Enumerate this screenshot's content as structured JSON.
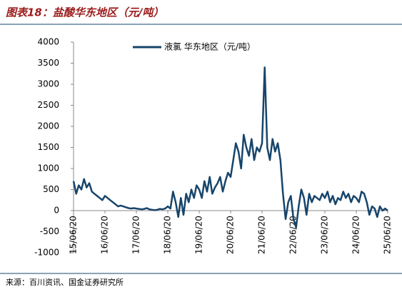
{
  "chart_data": {
    "type": "line",
    "title": "图表18：盐酸华东地区（元/吨）",
    "source": "来源：百川资讯、国金证券研究所",
    "categories": [
      "15/06/20",
      null,
      null,
      null,
      null,
      null,
      null,
      null,
      null,
      null,
      null,
      null,
      "16/06/20",
      null,
      null,
      null,
      null,
      null,
      null,
      null,
      null,
      null,
      null,
      null,
      "17/06/20",
      null,
      null,
      null,
      null,
      null,
      null,
      null,
      null,
      null,
      null,
      null,
      "18/06/20",
      null,
      null,
      null,
      null,
      null,
      null,
      null,
      null,
      null,
      null,
      null,
      "19/06/20",
      null,
      null,
      null,
      null,
      null,
      null,
      null,
      null,
      null,
      null,
      null,
      "20/06/20",
      null,
      null,
      null,
      null,
      null,
      null,
      null,
      null,
      null,
      null,
      null,
      "21/06/20",
      null,
      null,
      null,
      null,
      null,
      null,
      null,
      null,
      null,
      null,
      null,
      "22/06/20",
      null,
      null,
      null,
      null,
      null,
      null,
      null,
      null,
      null,
      null,
      null,
      "23/06/20",
      null,
      null,
      null,
      null,
      null,
      null,
      null,
      null,
      null,
      null,
      null,
      "24/06/20",
      null,
      null,
      null,
      null,
      null,
      null,
      null,
      null,
      null,
      null,
      null,
      "25/06/20"
    ],
    "series": [
      {
        "name": "液氯 华东地区（元/吨）",
        "color": "#17456b",
        "values": [
          700,
          400,
          600,
          500,
          750,
          550,
          650,
          450,
          400,
          350,
          300,
          250,
          350,
          300,
          250,
          200,
          150,
          100,
          120,
          100,
          80,
          60,
          50,
          60,
          50,
          40,
          30,
          40,
          60,
          30,
          20,
          10,
          20,
          40,
          30,
          50,
          100,
          50,
          450,
          200,
          -150,
          300,
          -100,
          400,
          200,
          500,
          300,
          600,
          500,
          300,
          700,
          450,
          800,
          400,
          550,
          650,
          800,
          450,
          700,
          900,
          800,
          1200,
          1600,
          1400,
          1000,
          1800,
          1500,
          1300,
          1700,
          1200,
          1500,
          1400,
          1600,
          3400,
          1500,
          1200,
          1700,
          1400,
          1600,
          1200,
          400,
          -200,
          200,
          350,
          -200,
          -400,
          100,
          500,
          300,
          -100,
          400,
          200,
          350,
          300,
          250,
          400,
          300,
          450,
          200,
          350,
          150,
          300,
          250,
          450,
          300,
          400,
          200,
          350,
          300,
          200,
          450,
          400,
          200,
          -100,
          100,
          50,
          -150,
          100,
          0,
          50,
          0
        ]
      }
    ],
    "ylim": [
      -1000,
      4000
    ],
    "yticks": [
      -1000,
      -500,
      0,
      500,
      1000,
      1500,
      2000,
      2500,
      3000,
      3500,
      4000
    ],
    "legend": "top"
  }
}
